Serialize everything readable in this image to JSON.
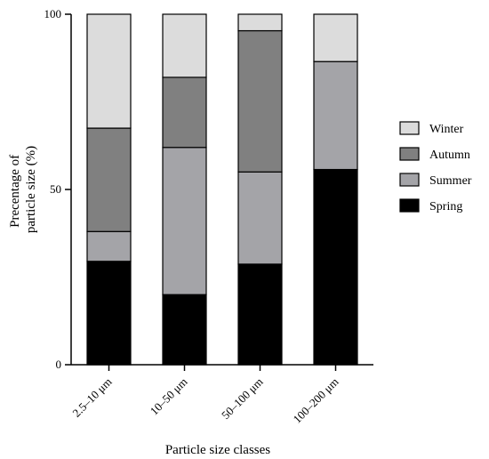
{
  "chart_data": {
    "type": "bar",
    "stacked": true,
    "categories": [
      "2.5–10 μm",
      "10–50 μm",
      "50–100 μm",
      "100–200 μm"
    ],
    "series": [
      {
        "name": "Spring",
        "color": "#000000",
        "values": [
          29.5,
          20.0,
          28.7,
          55.7
        ]
      },
      {
        "name": "Summer",
        "color": "#a4a4a8",
        "values": [
          8.5,
          42.0,
          26.3,
          30.8
        ]
      },
      {
        "name": "Autumn",
        "color": "#808080",
        "values": [
          29.5,
          20.0,
          40.3,
          0
        ]
      },
      {
        "name": "Winter",
        "color": "#dcdcdc",
        "values": [
          32.5,
          18.0,
          4.7,
          13.5
        ]
      }
    ],
    "xlabel": "Particle size classes",
    "ylabel_lines": [
      "Precentage of",
      "particle size (%)"
    ],
    "yticks": [
      "0",
      "50",
      "100"
    ],
    "ylim": [
      0,
      100
    ],
    "legend_position": "right",
    "legend_order": [
      "Winter",
      "Autumn",
      "Summer",
      "Spring"
    ]
  }
}
